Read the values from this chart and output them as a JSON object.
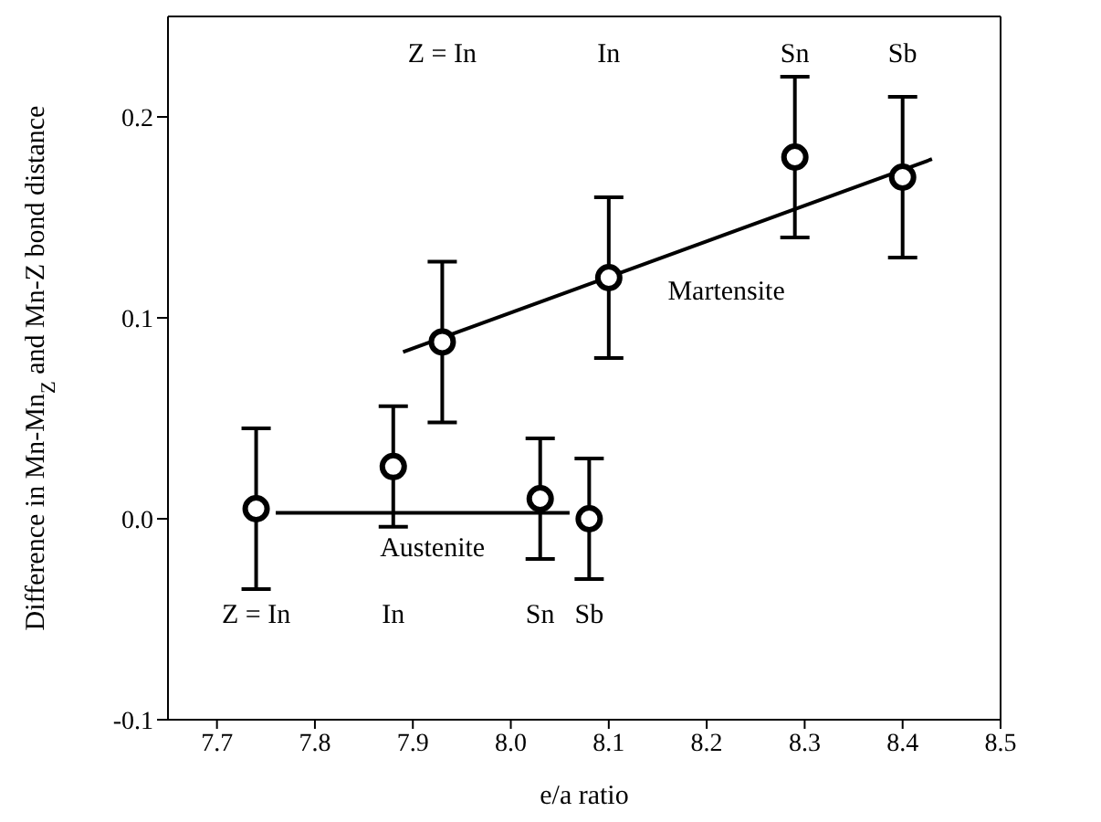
{
  "chart_data": {
    "type": "scatter",
    "xlabel": "e/a ratio",
    "ylabel": "Difference in Mn-Mn$_{Z}$ and Mn-Z bond distance",
    "xlim": [
      7.65,
      8.5
    ],
    "xticks": [
      7.7,
      7.8,
      7.9,
      {
        "value": 8,
        "label": "8.0"
      },
      8.1,
      8.2,
      8.3,
      8.4,
      8.5
    ],
    "ylim": [
      -0.1,
      0.25
    ],
    "yticks": [
      -0.1,
      {
        "value": 0,
        "label": "0.0"
      },
      0.1,
      0.2
    ],
    "marker": "circle",
    "grid": false,
    "legend": false,
    "series": [
      {
        "color": "#000000",
        "x": [
          7.74,
          7.88,
          8.03,
          8.08
        ],
        "values": [
          0.005,
          0.026,
          0.01,
          0.0
        ],
        "errors": [
          0.04,
          0.03,
          0.03,
          0.03
        ]
      },
      {
        "color": "#000000",
        "x": [
          7.93,
          8.1,
          8.29,
          8.4
        ],
        "values": [
          0.088,
          0.12,
          0.18,
          0.17
        ],
        "errors": [
          0.04,
          0.04,
          0.04,
          0.04
        ]
      },
      {
        "type": "line",
        "marker": "none",
        "color": "#000000",
        "x": [
          7.76,
          8.06
        ],
        "values": [
          0.003,
          0.003
        ]
      },
      {
        "type": "line",
        "marker": "none",
        "color": "#000000",
        "x": [
          7.89,
          8.43
        ],
        "values": [
          0.083,
          0.179
        ]
      }
    ],
    "annotations": [
      "Z = In",
      "In",
      "Sn",
      "Sb",
      "Austenite",
      "Z = In",
      "In",
      "Sn",
      "Sb",
      "Martensite"
    ]
  }
}
